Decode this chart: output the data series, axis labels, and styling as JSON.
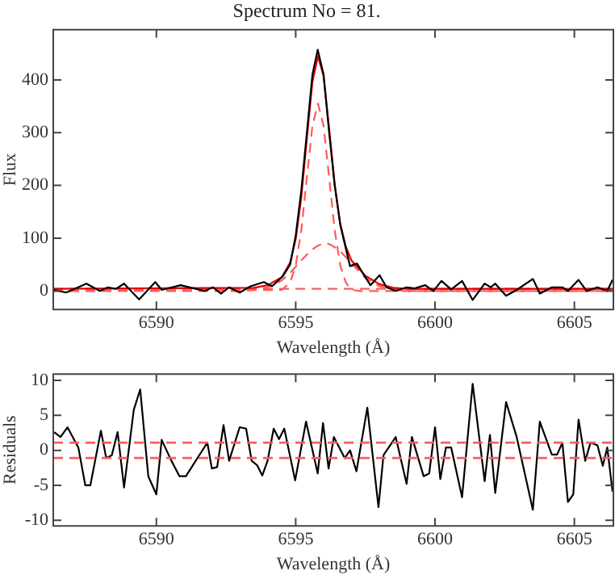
{
  "chart_data": [
    {
      "type": "line",
      "title": "Spectrum No = 81.",
      "xlabel": "Wavelength (Å)",
      "ylabel": "Flux",
      "xlim": [
        6586.3,
        6606.4
      ],
      "xticks": [
        6590,
        6595,
        6600,
        6605
      ],
      "ylim": [
        -35,
        495
      ],
      "yticks": [
        0,
        100,
        200,
        300,
        400
      ],
      "grid": false,
      "legend": false,
      "marker": "none",
      "series": [
        {
          "color": "#000000",
          "line_style": "solid",
          "x": [
            6586.33,
            6586.76,
            6587.49,
            6587.97,
            6588.26,
            6588.55,
            6588.84,
            6589.38,
            6589.96,
            6590.19,
            6590.87,
            6591.74,
            6592.03,
            6592.32,
            6592.61,
            6592.99,
            6593.38,
            6593.86,
            6594.15,
            6594.54,
            6594.8,
            6595.0,
            6595.2,
            6595.4,
            6595.6,
            6595.79,
            6596.0,
            6596.2,
            6596.4,
            6596.6,
            6596.8,
            6596.95,
            6597.2,
            6597.37,
            6597.68,
            6598.01,
            6598.26,
            6598.59,
            6598.98,
            6599.27,
            6599.65,
            6599.94,
            6600.23,
            6600.58,
            6600.97,
            6601.35,
            6601.78,
            6602.0,
            6602.16,
            6602.55,
            6602.93,
            6603.51,
            6603.76,
            6604.19,
            6604.57,
            6604.77,
            6605.15,
            6605.44,
            6605.83,
            6606.18,
            6606.37
          ],
          "values": [
            2,
            -3,
            14,
            0,
            7,
            4,
            14,
            -16,
            17,
            2,
            11,
            0,
            7,
            -5,
            7,
            -3,
            9,
            17,
            9,
            28,
            50,
            105,
            190,
            300,
            410,
            457,
            410,
            300,
            200,
            125,
            80,
            47,
            52,
            37,
            11,
            30,
            7,
            0,
            7,
            5,
            11,
            0,
            19,
            3,
            19,
            -17,
            14,
            7,
            14,
            -9,
            2,
            23,
            -5,
            7,
            7,
            0,
            21,
            0,
            7,
            0,
            21
          ]
        },
        {
          "color": "#e00000",
          "line_style": "solid",
          "x": [
            6586.3,
            6593.5,
            6594.0,
            6594.5,
            6594.8,
            6595.0,
            6595.2,
            6595.4,
            6595.6,
            6595.8,
            6596.0,
            6596.2,
            6596.4,
            6596.6,
            6596.8,
            6597.0,
            6597.5,
            6598.0,
            6598.5,
            6599.0,
            6606.4
          ],
          "values": [
            4,
            6,
            11,
            26,
            54,
            98,
            177,
            288,
            396,
            445,
            407,
            308,
            202,
            127,
            84,
            58,
            29,
            13,
            6,
            4,
            4
          ]
        },
        {
          "color": "#ff5a5a",
          "line_style": "dashed",
          "x": [
            6586.3,
            6594.5,
            6594.8,
            6595.0,
            6595.2,
            6595.4,
            6595.6,
            6595.8,
            6596.0,
            6596.2,
            6596.4,
            6596.6,
            6596.8,
            6597.0,
            6597.3,
            6606.4
          ],
          "values": [
            0,
            2,
            16,
            48,
            115,
            215,
            313,
            355,
            313,
            215,
            115,
            48,
            16,
            2,
            0,
            0
          ]
        },
        {
          "color": "#ff5a5a",
          "line_style": "dashed",
          "x": [
            6586.3,
            6593.0,
            6593.5,
            6594.0,
            6594.5,
            6594.8,
            6595.0,
            6595.2,
            6595.4,
            6595.6,
            6595.8,
            6596.0,
            6596.2,
            6596.4,
            6596.6,
            6596.8,
            6597.0,
            6597.5,
            6598.0,
            6598.5,
            6599.0,
            6606.4
          ],
          "values": [
            0,
            0,
            2,
            7,
            20,
            34,
            46,
            58,
            69,
            79,
            86,
            90,
            89,
            83,
            75,
            64,
            52,
            25,
            9,
            2,
            0,
            0
          ]
        },
        {
          "color": "#ff5a5a",
          "line_style": "dashed",
          "x": [
            6586.3,
            6606.4
          ],
          "values": [
            4,
            4
          ]
        }
      ]
    },
    {
      "type": "line",
      "xlabel": "Wavelength (Å)",
      "ylabel": "Residuals",
      "xlim": [
        6586.3,
        6606.4
      ],
      "xticks": [
        6590,
        6595,
        6600,
        6605
      ],
      "ylim": [
        -10.8,
        10.9
      ],
      "yticks": [
        -10,
        -5,
        0,
        5,
        10
      ],
      "grid": false,
      "legend": false,
      "marker": "none",
      "series": [
        {
          "color": "#000000",
          "line_style": "solid",
          "x": [
            6586.33,
            6586.56,
            6586.81,
            6587.2,
            6587.45,
            6587.63,
            6588.01,
            6588.2,
            6588.4,
            6588.61,
            6588.84,
            6589.19,
            6589.42,
            6589.71,
            6590.0,
            6590.19,
            6590.54,
            6590.83,
            6591.06,
            6591.83,
            6591.99,
            6592.18,
            6592.41,
            6592.61,
            6592.99,
            6593.22,
            6593.42,
            6593.61,
            6593.8,
            6593.99,
            6594.21,
            6594.4,
            6594.59,
            6594.98,
            6595.37,
            6595.79,
            6595.98,
            6596.18,
            6596.37,
            6596.76,
            6596.95,
            6597.18,
            6597.57,
            6597.97,
            6598.15,
            6598.59,
            6598.98,
            6599.17,
            6599.59,
            6599.79,
            6600.0,
            6600.19,
            6600.39,
            6600.58,
            6600.97,
            6601.35,
            6601.78,
            6601.97,
            6602.16,
            6602.55,
            6602.93,
            6603.51,
            6603.76,
            6604.19,
            6604.38,
            6604.57,
            6604.77,
            6604.96,
            6605.15,
            6605.39,
            6605.58,
            6605.83,
            6606.02,
            6606.18,
            6606.37
          ],
          "values": [
            2.6,
            1.9,
            3.3,
            0.4,
            -5.0,
            -5.0,
            2.8,
            -1.1,
            -0.7,
            2.6,
            -5.3,
            5.8,
            8.7,
            -3.7,
            -6.3,
            1.5,
            -1.5,
            -3.7,
            -3.7,
            1.1,
            -2.6,
            -2.4,
            3.6,
            -1.5,
            3.3,
            3.1,
            -1.5,
            -2.1,
            -3.6,
            -1.5,
            3.1,
            1.6,
            3.1,
            -4.3,
            4.1,
            -3.3,
            3.9,
            -2.6,
            1.9,
            -1.1,
            0,
            -3.0,
            6.1,
            -8.1,
            -0.7,
            1.9,
            -4.8,
            1.9,
            -3.7,
            -3.3,
            3.3,
            -4.1,
            0.4,
            0.4,
            -6.7,
            9.5,
            -4.4,
            2.2,
            -6.1,
            6.9,
            1.9,
            -8.5,
            4.1,
            -0.6,
            -0.6,
            1.1,
            -7.4,
            -6.3,
            4.4,
            -1.5,
            1.1,
            0.7,
            -2.2,
            0.4,
            -5.9
          ]
        }
      ],
      "ref_lines": [
        {
          "axis": "y",
          "value": 1.1,
          "color": "#ff5a5a",
          "line_style": "dashed"
        },
        {
          "axis": "y",
          "value": -1.1,
          "color": "#ff5a5a",
          "line_style": "dashed"
        }
      ]
    }
  ]
}
